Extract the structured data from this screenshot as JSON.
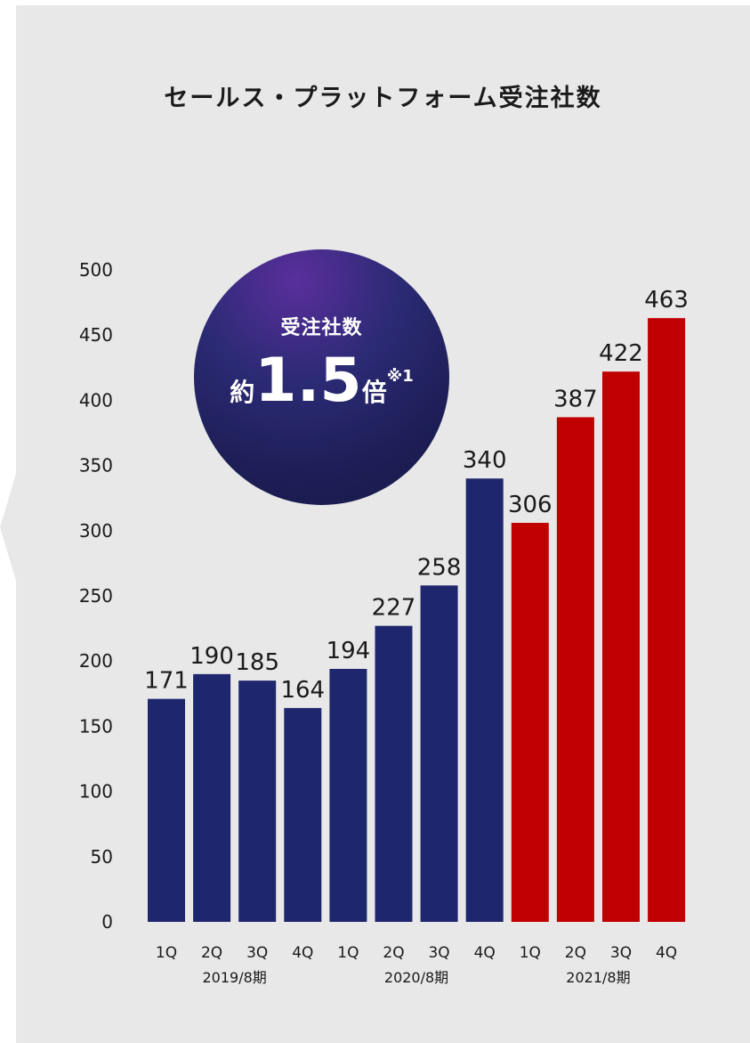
{
  "chart_data": {
    "type": "bar",
    "title": "セールス・プラットフォーム受注社数",
    "categories": [
      "1Q",
      "2Q",
      "3Q",
      "4Q",
      "1Q",
      "2Q",
      "3Q",
      "4Q",
      "1Q",
      "2Q",
      "3Q",
      "4Q"
    ],
    "groups": [
      {
        "label": "2019/8期",
        "start": 0,
        "end": 3
      },
      {
        "label": "2020/8期",
        "start": 4,
        "end": 7
      },
      {
        "label": "2021/8期",
        "start": 8,
        "end": 11
      }
    ],
    "values": [
      171,
      190,
      185,
      164,
      194,
      227,
      258,
      340,
      306,
      387,
      422,
      463
    ],
    "bar_colors": [
      "#1e276e",
      "#1e276e",
      "#1e276e",
      "#1e276e",
      "#1e276e",
      "#1e276e",
      "#1e276e",
      "#1e276e",
      "#c00000",
      "#c00000",
      "#c00000",
      "#c00000"
    ],
    "ylim": [
      0,
      500
    ],
    "yticks": [
      0,
      50,
      100,
      150,
      200,
      250,
      300,
      350,
      400,
      450,
      500
    ],
    "grid": false,
    "xlabel": "",
    "ylabel": ""
  },
  "badge": {
    "label": "受注社数",
    "prefix": "約",
    "number": "1.5",
    "suffix": "倍",
    "note": "※1"
  },
  "colors": {
    "panel_background": "#e8e8e8",
    "navy": "#1e276e",
    "red": "#c00000"
  }
}
